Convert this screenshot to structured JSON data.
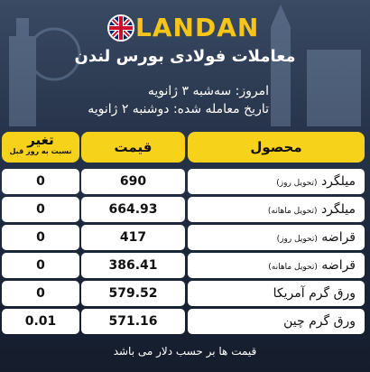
{
  "brand": "LANDAN",
  "subtitle": "معاملات فولادی بورس لندن",
  "today_line": "امروز: سه‌شبه ۳ ژانویه",
  "trade_date_line": "تاریخ معامله شده: دوشنبه ۲ ژانویه",
  "table": {
    "headers": {
      "product": "محصول",
      "price": "قیمت",
      "change": "تغیر",
      "change_sub": "نسبت به روز قبل"
    },
    "rows": [
      {
        "name": "میلگرد",
        "note": "(تحویل روز)",
        "price": "690",
        "change": "0"
      },
      {
        "name": "میلگرد",
        "note": "(تحویل ماهانه)",
        "price": "664.93",
        "change": "0"
      },
      {
        "name": "قراضه",
        "note": "(تحویل روز)",
        "price": "417",
        "change": "0"
      },
      {
        "name": "قراضه",
        "note": "(تحویل ماهانه)",
        "price": "386.41",
        "change": "0"
      },
      {
        "name": "ورق گرم آمریکا",
        "note": "",
        "price": "579.52",
        "change": "0"
      },
      {
        "name": "ورق گرم چین",
        "note": "",
        "price": "571.16",
        "change": "0.01"
      }
    ]
  },
  "footer": "قیمت ها بر حسب دلار می باشد",
  "colors": {
    "accent": "#f7d21a",
    "background": "#1b2538"
  },
  "icons": {
    "flag": "uk-flag-icon"
  }
}
